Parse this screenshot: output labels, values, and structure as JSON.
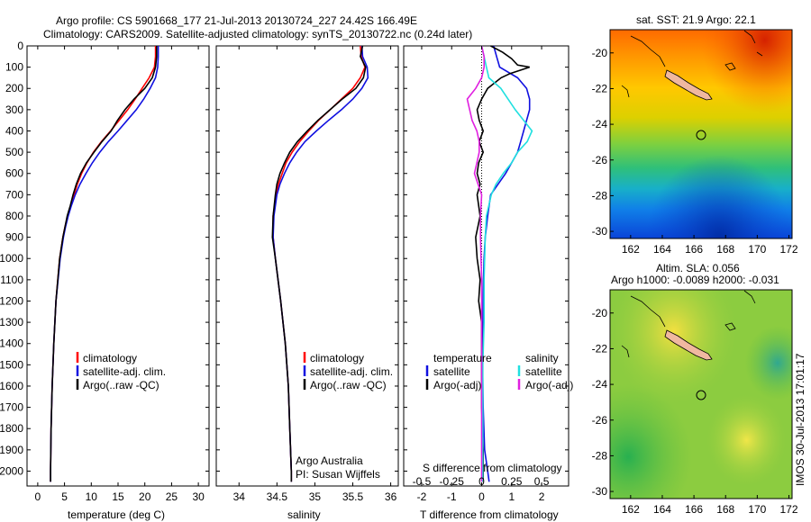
{
  "title": {
    "line1": "Argo profile: CS 5901668_177 21-Jul-2013 20130724_227 24.42S 166.49E",
    "line2": "Climatology: CARS2009. Satellite-adjusted climatology: synTS_20130722.nc (0.24d later)"
  },
  "depth_ticks": [
    "0",
    "100",
    "200",
    "300",
    "400",
    "500",
    "600",
    "700",
    "800",
    "900",
    "1000",
    "1100",
    "1200",
    "1300",
    "1400",
    "1500",
    "1600",
    "1700",
    "1800",
    "1900",
    "2000"
  ],
  "colors": {
    "climatology": "#ff0000",
    "satellite": "#1010e0",
    "argo": "#000000",
    "sal_satellite": "#20e0e0",
    "sal_argo": "#e020e0"
  },
  "chart_data": [
    {
      "type": "line",
      "id": "temperature",
      "xlabel": "temperature (deg C)",
      "xlim": [
        -2,
        32
      ],
      "ylim": [
        2070,
        0
      ],
      "x_ticks": [
        "0",
        "5",
        "10",
        "15",
        "20",
        "25",
        "30"
      ],
      "legend": [
        "climatology",
        "satellite-adj. clim.",
        "Argo(..raw -QC)"
      ],
      "series": [
        {
          "name": "climatology",
          "color": "climatology",
          "depth": [
            0,
            50,
            100,
            150,
            200,
            250,
            300,
            350,
            400,
            450,
            500,
            550,
            600,
            650,
            700,
            750,
            800,
            850,
            900,
            1000,
            1200,
            1400,
            1600,
            1800,
            2000,
            2050
          ],
          "values": [
            22.0,
            22.0,
            21.8,
            20.8,
            19.5,
            18.2,
            16.8,
            15.2,
            13.6,
            11.9,
            10.4,
            9.2,
            8.2,
            7.4,
            6.8,
            6.2,
            5.6,
            5.1,
            4.7,
            4.1,
            3.4,
            3.0,
            2.7,
            2.5,
            2.4,
            2.4
          ]
        },
        {
          "name": "satellite-adj. clim.",
          "color": "satellite",
          "depth": [
            0,
            50,
            100,
            150,
            200,
            250,
            300,
            350,
            400,
            450,
            500,
            550,
            600,
            650,
            700,
            750,
            800,
            850,
            900,
            1000,
            1200,
            1400,
            1600,
            1800,
            2000,
            2050
          ],
          "values": [
            22.5,
            22.5,
            22.4,
            22.0,
            21.0,
            19.8,
            18.4,
            16.7,
            15.0,
            13.2,
            11.6,
            10.2,
            9.0,
            7.9,
            7.0,
            6.3,
            5.7,
            5.2,
            4.8,
            4.2,
            3.4,
            3.0,
            2.7,
            2.5,
            2.4,
            2.4
          ]
        },
        {
          "name": "Argo(..raw -QC)",
          "color": "argo",
          "depth": [
            0,
            50,
            100,
            150,
            200,
            250,
            300,
            350,
            400,
            450,
            500,
            550,
            600,
            650,
            700,
            750,
            800,
            850,
            900,
            1000,
            1200,
            1400,
            1600,
            1800,
            2000,
            2050
          ],
          "values": [
            22.2,
            22.2,
            22.0,
            21.4,
            20.0,
            18.0,
            16.3,
            14.9,
            13.7,
            12.0,
            10.5,
            9.1,
            8.0,
            7.2,
            6.6,
            6.1,
            5.5,
            5.1,
            4.7,
            4.1,
            3.4,
            3.0,
            2.7,
            2.5,
            2.4,
            2.4
          ]
        }
      ]
    },
    {
      "type": "line",
      "id": "salinity",
      "xlabel": "salinity",
      "xlim": [
        33.7,
        36.1
      ],
      "ylim": [
        2070,
        0
      ],
      "x_ticks": [
        "34",
        "34.5",
        "35",
        "35.5",
        "36"
      ],
      "legend": [
        "climatology",
        "satellite-adj. clim.",
        "Argo(..raw -QC)"
      ],
      "annotation": [
        "Argo Australia",
        "PI: Susan Wijffels"
      ],
      "series": [
        {
          "name": "climatology",
          "color": "climatology",
          "depth": [
            0,
            50,
            100,
            150,
            200,
            250,
            300,
            350,
            400,
            450,
            500,
            550,
            600,
            650,
            700,
            800,
            900,
            1000,
            1200,
            1400,
            1600,
            1800,
            2000,
            2050
          ],
          "values": [
            35.6,
            35.61,
            35.66,
            35.6,
            35.5,
            35.35,
            35.2,
            35.05,
            34.92,
            34.8,
            34.7,
            34.62,
            34.57,
            34.52,
            34.49,
            34.45,
            34.45,
            34.48,
            34.55,
            34.61,
            34.65,
            34.67,
            34.69,
            34.69
          ]
        },
        {
          "name": "satellite-adj. clim.",
          "color": "satellite",
          "depth": [
            0,
            50,
            100,
            150,
            200,
            250,
            300,
            350,
            400,
            450,
            500,
            550,
            600,
            650,
            700,
            800,
            900,
            1000,
            1200,
            1400,
            1600,
            1800,
            2000,
            2050
          ],
          "values": [
            35.62,
            35.63,
            35.69,
            35.7,
            35.62,
            35.5,
            35.35,
            35.18,
            35.02,
            34.87,
            34.76,
            34.67,
            34.6,
            34.54,
            34.5,
            34.46,
            34.45,
            34.48,
            34.55,
            34.61,
            34.65,
            34.67,
            34.69,
            34.69
          ]
        },
        {
          "name": "Argo(..raw -QC)",
          "color": "argo",
          "depth": [
            0,
            50,
            100,
            150,
            200,
            250,
            300,
            350,
            400,
            450,
            500,
            550,
            600,
            650,
            700,
            800,
            900,
            1000,
            1200,
            1400,
            1600,
            1800,
            2000,
            2050
          ],
          "values": [
            35.63,
            35.6,
            35.67,
            35.64,
            35.54,
            35.36,
            35.2,
            35.04,
            34.9,
            34.77,
            34.67,
            34.6,
            34.54,
            34.5,
            34.48,
            34.45,
            34.44,
            34.48,
            34.55,
            34.61,
            34.65,
            34.67,
            34.69,
            34.69
          ]
        }
      ]
    },
    {
      "type": "line",
      "id": "difference",
      "xlabel": "T difference from climatology",
      "xlabel_top": "S difference from climatology",
      "xlim": [
        -2.6,
        2.9
      ],
      "ylim": [
        2070,
        0
      ],
      "x_ticks": [
        "-2",
        "-1",
        "0",
        "1",
        "2"
      ],
      "s_ticks": [
        "-0.5",
        "-0.25",
        "0",
        "0.25",
        "0.5"
      ],
      "legend_temperature": [
        "temperature",
        "satellite",
        "Argo(-adj)"
      ],
      "legend_salinity": [
        "salinity",
        "satellite",
        "Argo(-adj)"
      ],
      "series": [
        {
          "name": "temperature satellite",
          "color": "satellite",
          "depth": [
            0,
            50,
            100,
            150,
            200,
            250,
            300,
            350,
            400,
            450,
            500,
            550,
            600,
            650,
            700,
            800,
            900,
            1000,
            1100,
            1300,
            1500,
            1700,
            1900,
            2000,
            2050
          ],
          "values": [
            0.4,
            0.5,
            0.6,
            1.2,
            1.5,
            1.6,
            1.6,
            1.5,
            1.4,
            1.3,
            1.2,
            1.0,
            0.8,
            0.55,
            0.3,
            0.2,
            0.12,
            0.08,
            0.06,
            0.04,
            0.03,
            0.05,
            0.1,
            0.2,
            0.25
          ]
        },
        {
          "name": "temperature Argo(-adj)",
          "color": "argo",
          "depth": [
            0,
            30,
            60,
            90,
            100,
            130,
            150,
            200,
            250,
            300,
            350,
            400,
            450,
            500,
            550,
            600,
            650,
            700,
            800,
            900,
            1000,
            1100,
            1200,
            1300,
            1500,
            1700,
            1900,
            2000,
            2050
          ],
          "values": [
            0.3,
            0.7,
            1.0,
            1.2,
            1.6,
            0.95,
            0.65,
            0.2,
            0,
            -0.15,
            -0.08,
            0.05,
            -0.08,
            0.05,
            -0.1,
            -0.15,
            -0.05,
            -0.15,
            -0.05,
            -0.2,
            -0.15,
            -0.05,
            -0.1,
            0,
            0,
            0,
            0.05,
            0.05,
            0.05
          ]
        },
        {
          "name": "salinity satellite",
          "color": "sal_satellite",
          "depth": [
            0,
            50,
            100,
            150,
            200,
            250,
            300,
            400,
            450,
            500,
            550,
            600,
            650,
            700,
            800,
            900,
            1100,
            1300,
            1500,
            1700,
            1900,
            2050
          ],
          "values": [
            0,
            0.02,
            0.04,
            0.06,
            0.16,
            0.22,
            0.28,
            0.42,
            0.38,
            0.3,
            0.25,
            0.18,
            0.12,
            0.08,
            0.04,
            0.03,
            0.02,
            0.02,
            0.01,
            0.01,
            0.01,
            0.01
          ]
        },
        {
          "name": "salinity Argo(-adj)",
          "color": "sal_argo",
          "depth": [
            0,
            50,
            100,
            150,
            200,
            250,
            300,
            350,
            400,
            450,
            500,
            550,
            600,
            650,
            700,
            800,
            900,
            1100,
            1300,
            1500,
            1700,
            1900,
            2050
          ],
          "values": [
            0,
            0.02,
            0.02,
            0.0,
            -0.05,
            -0.12,
            -0.1,
            -0.08,
            -0.04,
            -0.02,
            -0.02,
            -0.04,
            -0.06,
            -0.03,
            0,
            -0.01,
            -0.01,
            0,
            0,
            0,
            0,
            0,
            0
          ]
        }
      ]
    }
  ],
  "maps": {
    "x_ticks": [
      "162",
      "164",
      "166",
      "168",
      "170",
      "172"
    ],
    "y_ticks": [
      "-20",
      "-22",
      "-24",
      "-26",
      "-28",
      "-30"
    ],
    "sst": {
      "title": "sat. SST: 21.9 Argo: 22.1"
    },
    "sla": {
      "title_line1": "Altim. SLA: 0.056",
      "title_line2": "Argo h1000: -0.0089 h2000: -0.031"
    }
  },
  "stamp": "IMOS 30-Jul-2013 17:01:17"
}
